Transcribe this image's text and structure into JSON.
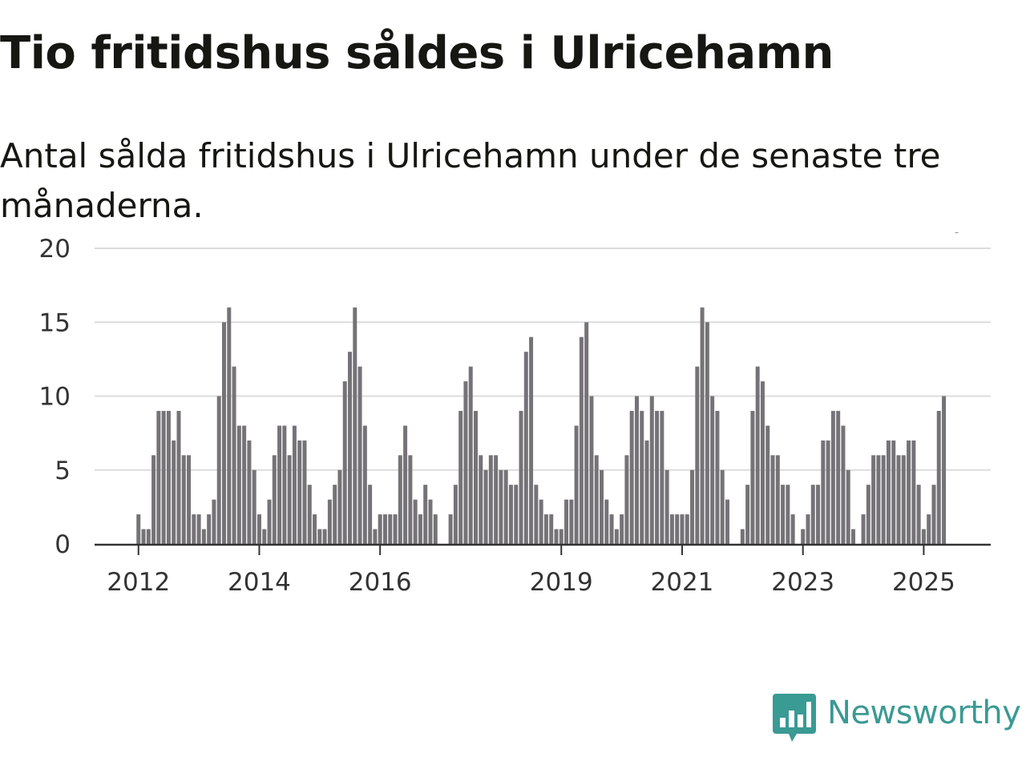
{
  "title": "Tio fritidshus såldes i Ulricehamn",
  "subtitle": "Antal sålda fritidshus i Ulricehamn under de senaste tre månaderna.",
  "brand": {
    "name": "Newsworthy",
    "color": "#3a9a94",
    "icon": "newsworthy-logo-icon"
  },
  "chart_data": {
    "type": "bar",
    "title": "Tio fritidshus såldes i Ulricehamn",
    "subtitle": "Antal sålda fritidshus i Ulricehamn under de senaste tre månaderna.",
    "xlabel": "",
    "ylabel": "",
    "ylim": [
      0,
      20
    ],
    "yticks": [
      0,
      5,
      10,
      15,
      20
    ],
    "xticks": [
      {
        "label": "2012",
        "index": 8
      },
      {
        "label": "2014",
        "index": 32
      },
      {
        "label": "2016",
        "index": 56
      },
      {
        "label": "2019",
        "index": 92
      },
      {
        "label": "2021",
        "index": 116
      },
      {
        "label": "2023",
        "index": 140
      },
      {
        "label": "2025",
        "index": 164
      }
    ],
    "grid": true,
    "bar_color": "#767378",
    "highlight_color": "#2a9d96",
    "highlight_index": 169,
    "annotation": "10",
    "values": [
      0,
      0,
      0,
      0,
      0,
      0,
      0,
      0,
      2,
      1,
      1,
      6,
      9,
      9,
      9,
      7,
      9,
      6,
      6,
      2,
      2,
      1,
      2,
      3,
      10,
      15,
      16,
      12,
      8,
      8,
      7,
      5,
      2,
      1,
      3,
      6,
      8,
      8,
      6,
      8,
      7,
      7,
      4,
      2,
      1,
      1,
      3,
      4,
      5,
      11,
      13,
      16,
      12,
      8,
      4,
      1,
      2,
      2,
      2,
      2,
      6,
      8,
      6,
      3,
      2,
      4,
      3,
      2,
      0,
      0,
      2,
      4,
      9,
      11,
      12,
      9,
      6,
      5,
      6,
      6,
      5,
      5,
      4,
      4,
      9,
      13,
      14,
      4,
      3,
      2,
      2,
      1,
      1,
      3,
      3,
      8,
      14,
      15,
      10,
      6,
      5,
      3,
      2,
      1,
      2,
      6,
      9,
      10,
      9,
      7,
      10,
      9,
      9,
      5,
      2,
      2,
      2,
      2,
      5,
      12,
      16,
      15,
      10,
      9,
      5,
      3,
      0,
      0,
      1,
      4,
      9,
      12,
      11,
      8,
      6,
      6,
      4,
      4,
      2,
      0,
      1,
      2,
      4,
      4,
      7,
      7,
      9,
      9,
      8,
      5,
      1,
      0,
      2,
      4,
      6,
      6,
      6,
      7,
      7,
      6,
      6,
      7,
      7,
      4,
      1,
      2,
      4,
      9,
      10
    ]
  }
}
